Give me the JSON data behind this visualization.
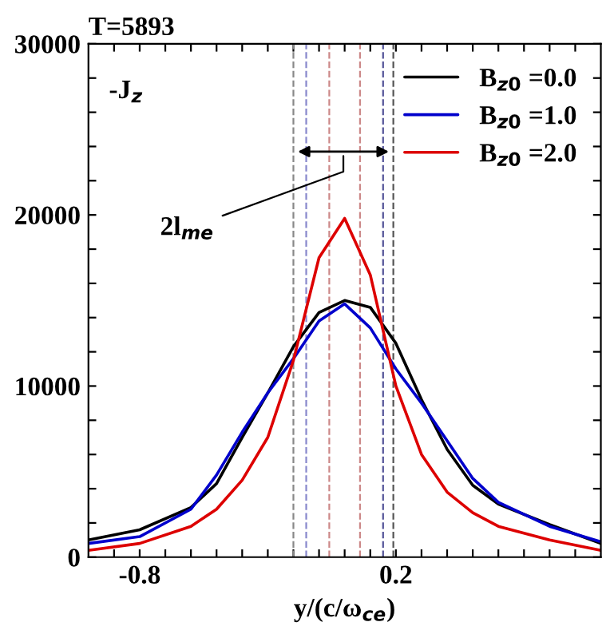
{
  "chart_data": {
    "type": "line",
    "title": "T=5893",
    "xlabel": "y/(c/ω$_{ce}$)",
    "xlim": [
      -1.0,
      1.0
    ],
    "ylim": [
      0,
      30000
    ],
    "xticks": [
      {
        "value": -0.9,
        "label": null
      },
      -0.8,
      {
        "value": -0.7,
        "label": null
      },
      {
        "value": -0.6,
        "label": null
      },
      {
        "value": -0.5,
        "label": null
      },
      {
        "value": -0.4,
        "label": null
      },
      {
        "value": -0.3,
        "label": null
      },
      {
        "value": -0.2,
        "label": null
      },
      {
        "value": -0.1,
        "label": null
      },
      {
        "value": 0.0,
        "label": null
      },
      {
        "value": 0.1,
        "label": null
      },
      0.2,
      {
        "value": 0.3,
        "label": null
      },
      {
        "value": 0.4,
        "label": null
      },
      {
        "value": 0.5,
        "label": null
      },
      {
        "value": 0.6,
        "label": null
      },
      {
        "value": 0.7,
        "label": null
      },
      {
        "value": 0.8,
        "label": null
      },
      {
        "value": 0.9,
        "label": null
      }
    ],
    "yticks": [
      0,
      {
        "value": 2000,
        "label": null
      },
      {
        "value": 4000,
        "label": null
      },
      {
        "value": 6000,
        "label": null
      },
      {
        "value": 8000,
        "label": null
      },
      10000,
      {
        "value": 12000,
        "label": null
      },
      {
        "value": 14000,
        "label": null
      },
      {
        "value": 16000,
        "label": null
      },
      {
        "value": 18000,
        "label": null
      },
      20000,
      {
        "value": 22000,
        "label": null
      },
      {
        "value": 24000,
        "label": null
      },
      {
        "value": 26000,
        "label": null
      },
      {
        "value": 28000,
        "label": null
      },
      30000
    ],
    "x": [
      -1.0,
      -0.8,
      -0.6,
      -0.5,
      -0.4,
      -0.3,
      -0.2,
      -0.1,
      0.0,
      0.1,
      0.2,
      0.3,
      0.4,
      0.5,
      0.6,
      0.8,
      1.0
    ],
    "series": [
      {
        "name": "B$_{z0}$ =0.0",
        "color": "#000000",
        "values": [
          1000,
          1600,
          2900,
          4300,
          7000,
          9600,
          12300,
          14300,
          15000,
          14600,
          12500,
          9200,
          6300,
          4200,
          3100,
          1900,
          800
        ]
      },
      {
        "name": "B$_{z0}$ =1.0",
        "color": "#0000cc",
        "values": [
          800,
          1200,
          2800,
          4800,
          7300,
          9600,
          11600,
          13800,
          14800,
          13400,
          11000,
          9000,
          6800,
          4600,
          3200,
          1800,
          900
        ]
      },
      {
        "name": "B$_{z0}$ =2.0",
        "color": "#dd0000",
        "values": [
          400,
          800,
          1800,
          2800,
          4500,
          7000,
          11500,
          17500,
          19800,
          16500,
          10000,
          6000,
          3800,
          2600,
          1800,
          1000,
          400
        ]
      }
    ],
    "ref_lines": [
      {
        "axis": "x",
        "value": -0.2,
        "color": "#888888",
        "line_style": "dashed"
      },
      {
        "axis": "x",
        "value": -0.15,
        "color": "#8888cc",
        "line_style": "dashed"
      },
      {
        "axis": "x",
        "value": -0.06,
        "color": "#cc8888",
        "line_style": "dashed"
      },
      {
        "axis": "x",
        "value": 0.06,
        "color": "#cc8888",
        "line_style": "dashed"
      },
      {
        "axis": "x",
        "value": 0.15,
        "color": "#555599",
        "line_style": "dashed"
      },
      {
        "axis": "x",
        "value": 0.19,
        "color": "#555555",
        "line_style": "dashed"
      }
    ],
    "annotations": [
      "-J$_{z}$",
      "2l$_{me}$"
    ],
    "legend": "top right",
    "grid": false,
    "marker": "none",
    "line_style": "solid"
  }
}
